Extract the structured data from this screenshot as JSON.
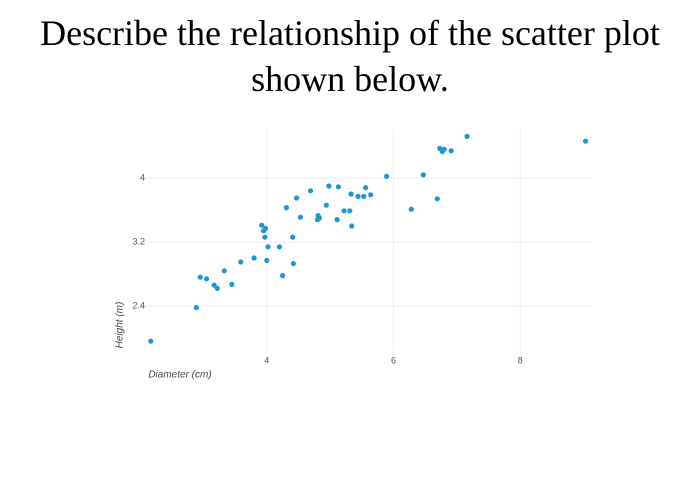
{
  "chart_data": {
    "type": "scatter",
    "title": "Describe the relationship of the scatter plot shown below.",
    "x_label": "Diameter (cm)",
    "y_label": "Height (m)",
    "color": "#1f96d3",
    "grid": true,
    "xlim": [
      2,
      9.1
    ],
    "xticks": [
      4,
      6,
      8
    ],
    "ylim": [
      1.85,
      4.6
    ],
    "yticks": [
      2.4,
      3.2,
      4
    ],
    "x": [
      2.17,
      2.89,
      2.95,
      3.05,
      3.17,
      3.22,
      3.33,
      3.45,
      3.59,
      3.8,
      3.92,
      3.95,
      3.97,
      3.98,
      4.0,
      4.02,
      4.2,
      4.25,
      4.31,
      4.41,
      4.42,
      4.47,
      4.53,
      4.69,
      4.8,
      4.81,
      4.83,
      4.94,
      4.98,
      5.11,
      5.13,
      5.22,
      5.31,
      5.33,
      5.34,
      5.44,
      5.53,
      5.56,
      5.64,
      5.89,
      6.28,
      6.47,
      6.69,
      6.73,
      6.77,
      6.8,
      6.91,
      7.16,
      9.03
    ],
    "values": [
      1.96,
      2.38,
      2.76,
      2.74,
      2.66,
      2.62,
      2.84,
      2.67,
      2.95,
      3.0,
      3.41,
      3.34,
      3.26,
      3.37,
      2.97,
      3.14,
      3.14,
      2.78,
      3.63,
      3.26,
      2.93,
      3.75,
      3.51,
      3.84,
      3.48,
      3.53,
      3.5,
      3.66,
      3.9,
      3.48,
      3.89,
      3.59,
      3.59,
      3.8,
      3.4,
      3.77,
      3.77,
      3.88,
      3.79,
      4.02,
      3.61,
      4.04,
      3.74,
      4.37,
      4.33,
      4.36,
      4.34,
      4.52,
      4.46
    ]
  }
}
